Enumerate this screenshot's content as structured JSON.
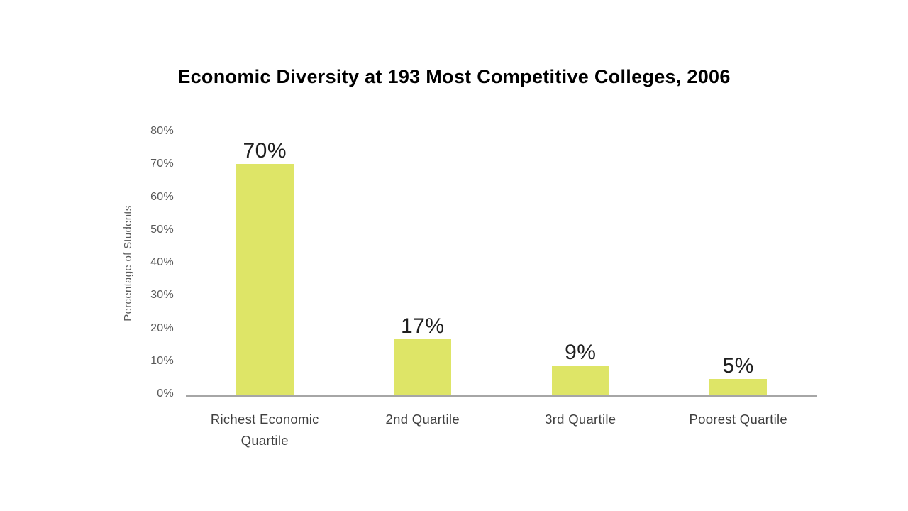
{
  "page": {
    "background_color": "#ffffff"
  },
  "chart_data": {
    "type": "bar",
    "title": "Economic Diversity at 193 Most Competitive Colleges, 2006",
    "xlabel": "",
    "ylabel": "Percentage of Students",
    "categories": [
      "Richest Economic Quartile",
      "2nd Quartile",
      "3rd Quartile",
      "Poorest Quartile"
    ],
    "values": [
      70,
      17,
      9,
      5
    ],
    "value_labels": [
      "70%",
      "17%",
      "9%",
      "5%"
    ],
    "ylim": [
      0,
      80
    ],
    "ytick_step": 10,
    "yticks": [
      "80%",
      "70%",
      "60%",
      "50%",
      "40%",
      "30%",
      "20%",
      "10%",
      "0%"
    ],
    "grid": false,
    "legend": "none",
    "colors": {
      "bar_fill": "#dee567",
      "axis_line": "#a6a6a6",
      "tick_label": "#595959",
      "category_label": "#3f3f3f",
      "value_label": "#1f1f1f",
      "title": "#000000"
    }
  }
}
